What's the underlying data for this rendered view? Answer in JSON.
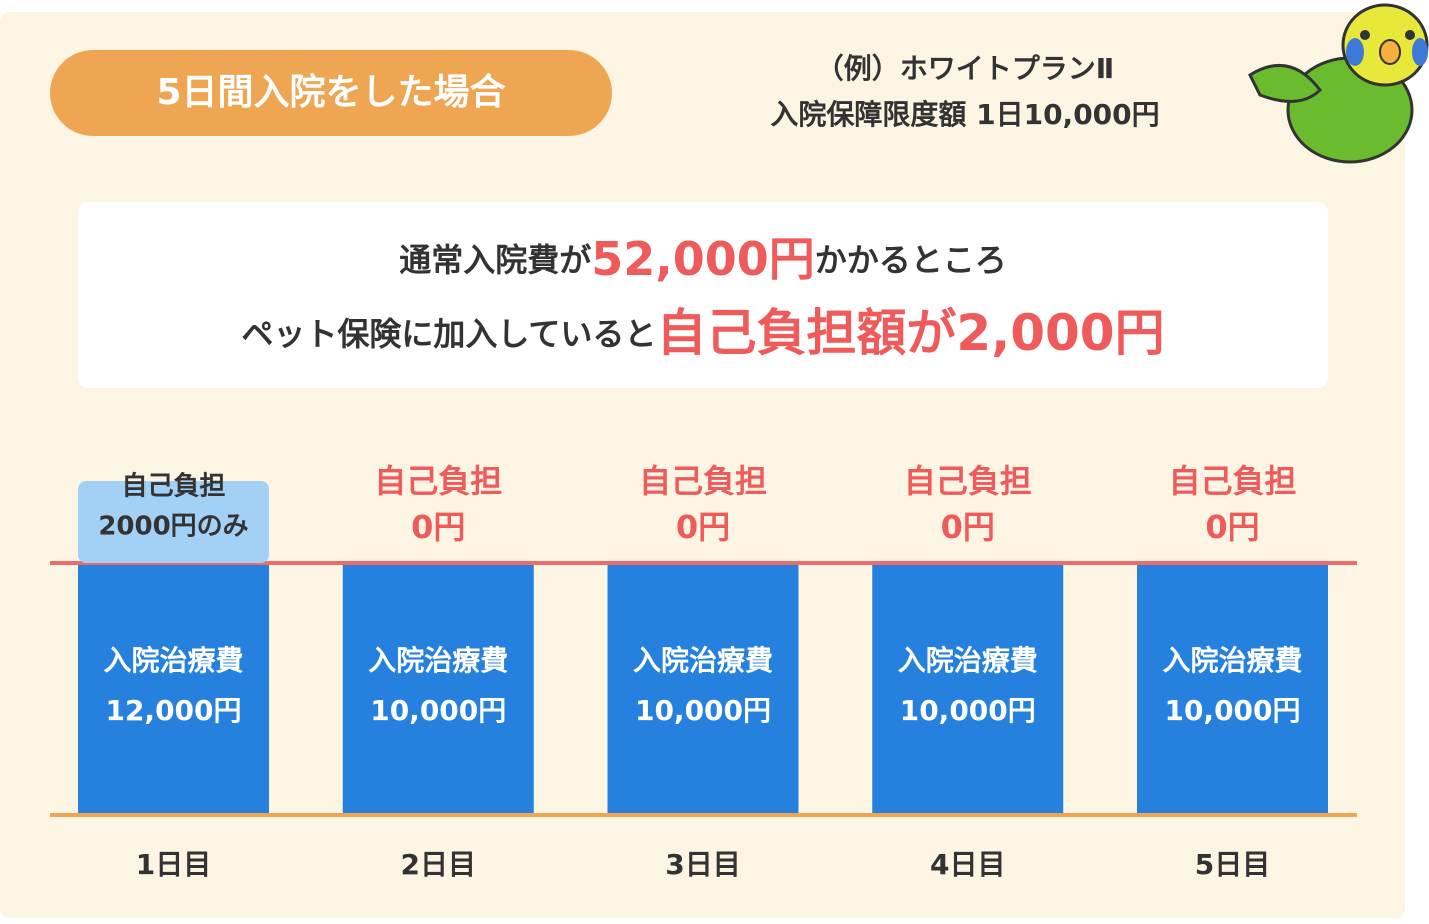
{
  "header": {
    "badge": "5日間入院をした場合",
    "plan": [
      "（例）ホワイトプランⅡ",
      "入院保障限度額 1日10,000円"
    ]
  },
  "summary": {
    "line1": [
      "通常入院費が",
      "52,000円",
      "かかるところ"
    ],
    "line2": [
      "ペット保険に加入していると",
      "自己負担額が2,000円"
    ]
  },
  "days": [
    {
      "copay": [
        "自己負担",
        "2000円のみ"
      ],
      "cost": [
        "入院治療費",
        "12,000円"
      ],
      "label": "1日目"
    },
    {
      "copay": [
        "自己負担",
        "0円"
      ],
      "cost": [
        "入院治療費",
        "10,000円"
      ],
      "label": "2日目"
    },
    {
      "copay": [
        "自己負担",
        "0円"
      ],
      "cost": [
        "入院治療費",
        "10,000円"
      ],
      "label": "3日目"
    },
    {
      "copay": [
        "自己負担",
        "0円"
      ],
      "cost": [
        "入院治療費",
        "10,000円"
      ],
      "label": "4日目"
    },
    {
      "copay": [
        "自己負担",
        "0円"
      ],
      "cost": [
        "入院治療費",
        "10,000円"
      ],
      "label": "5日目"
    }
  ]
}
